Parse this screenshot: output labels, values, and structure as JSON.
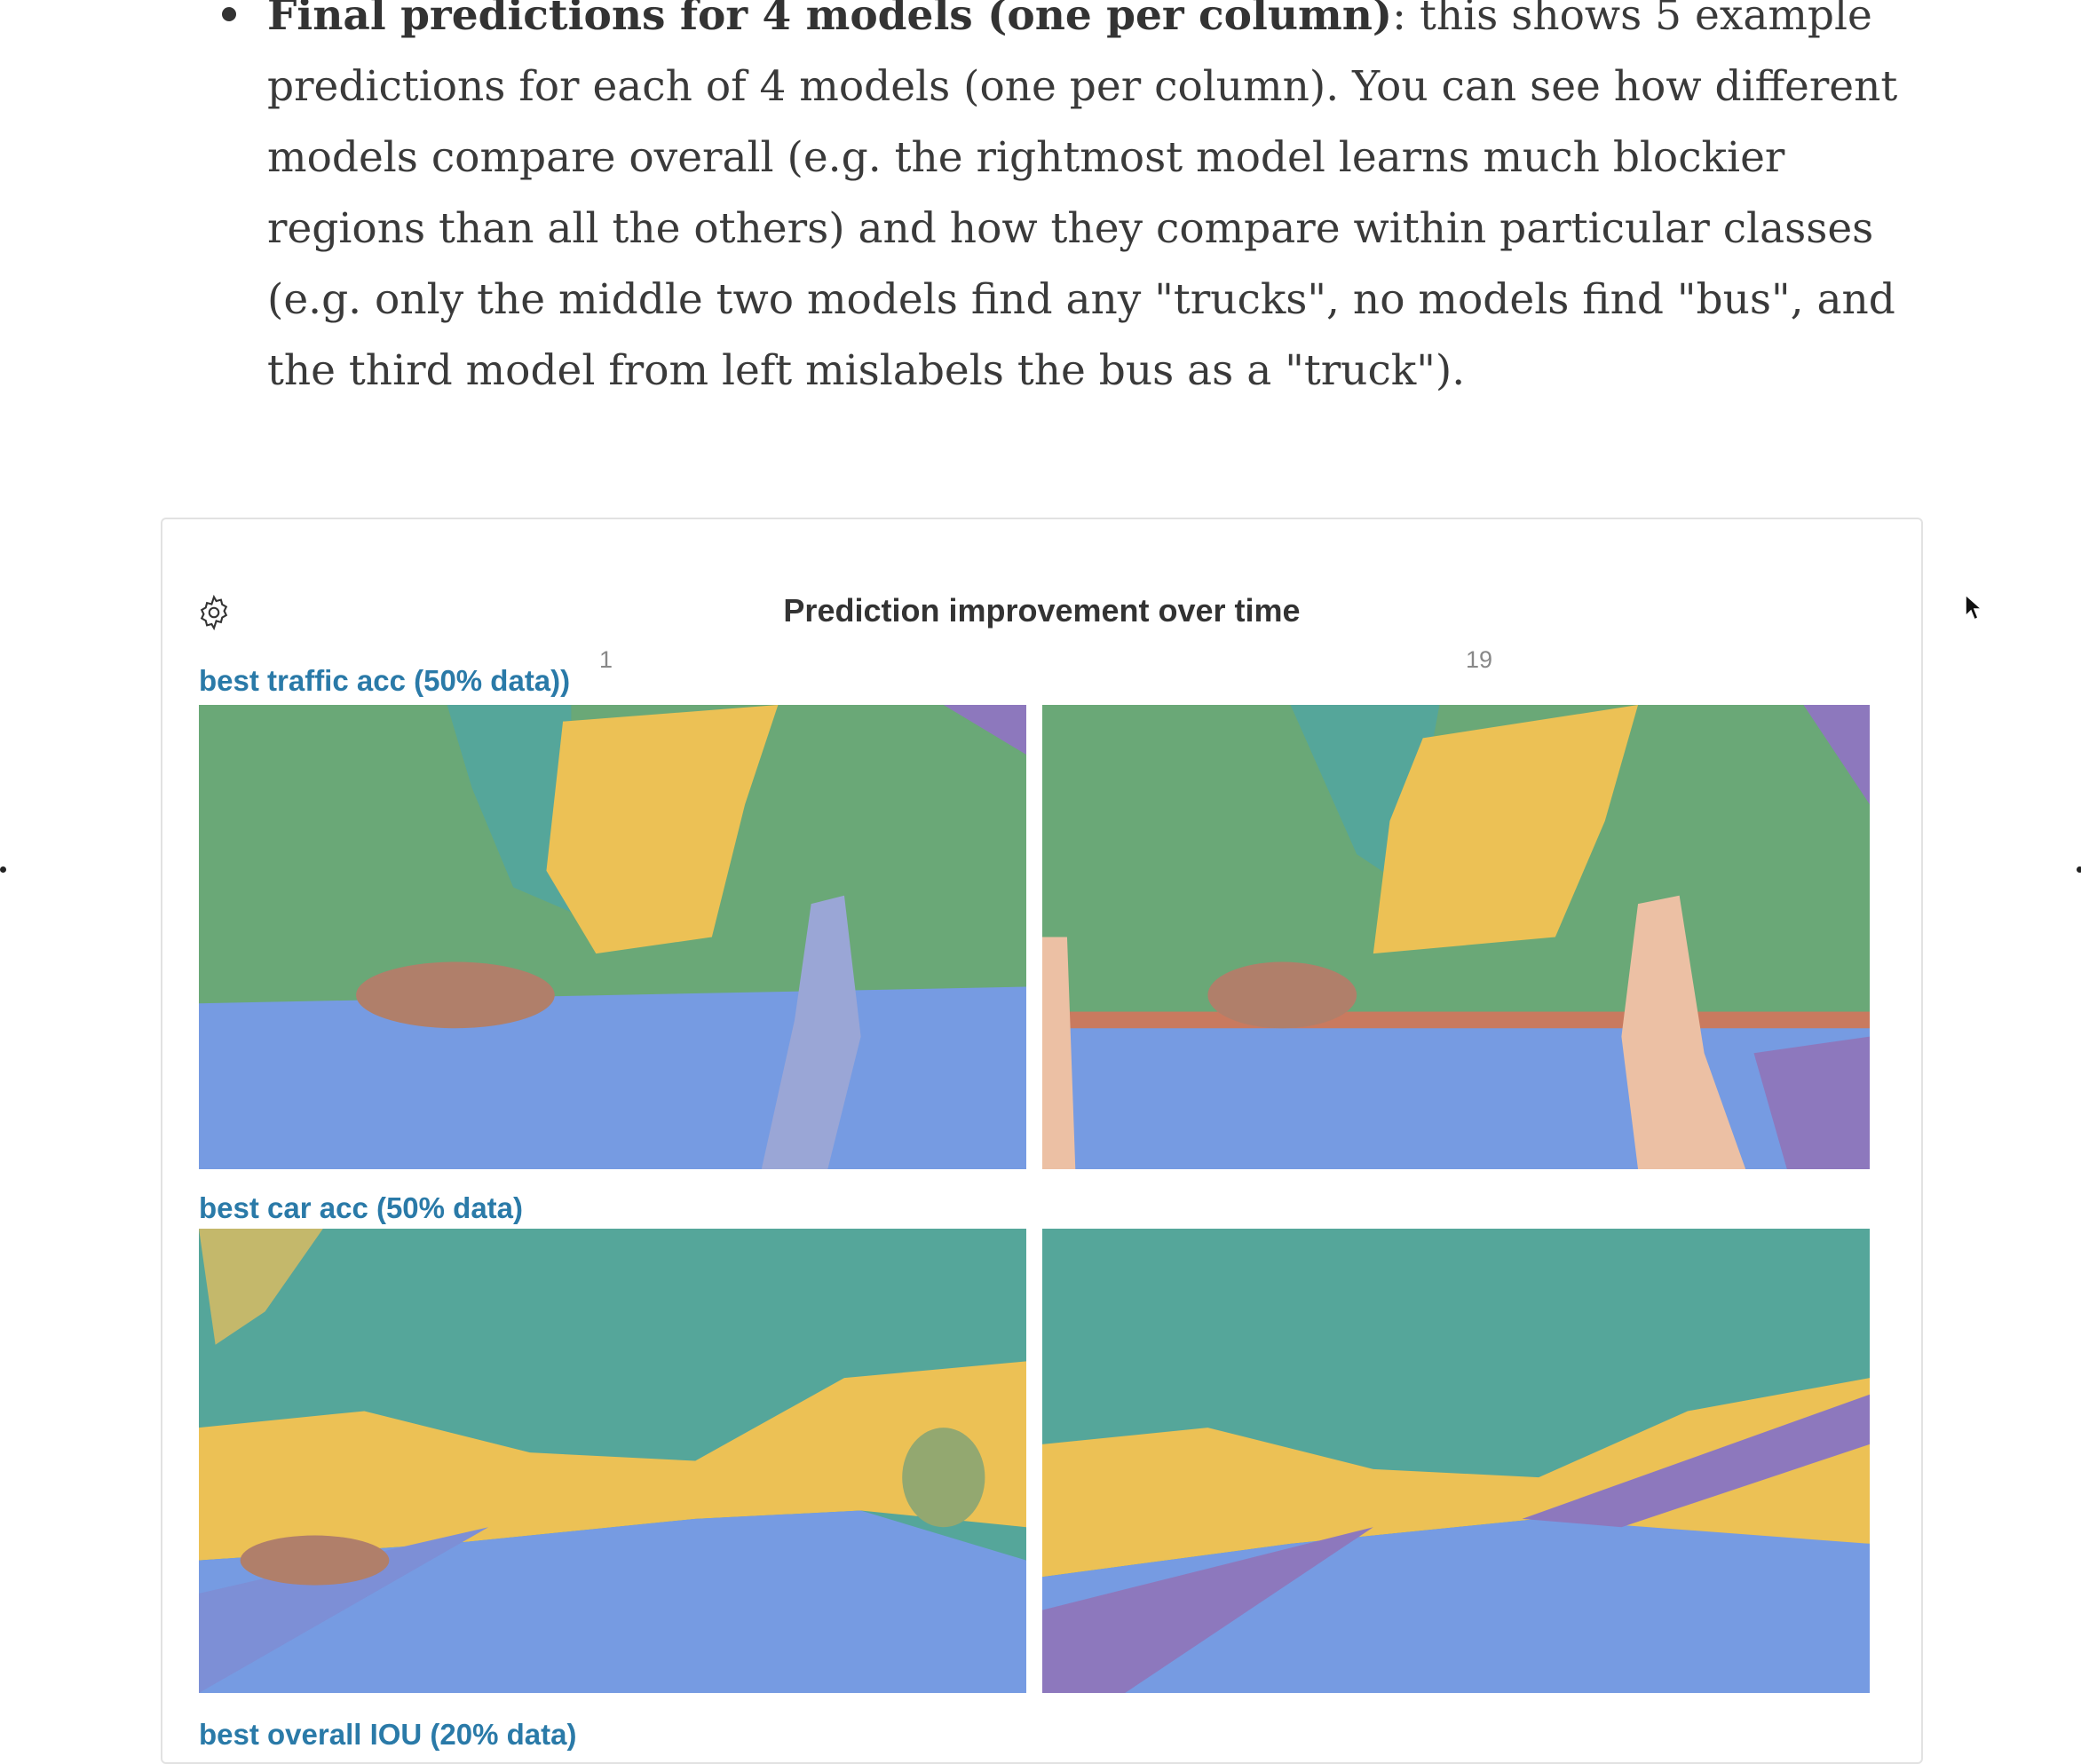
{
  "article": {
    "bullet_bold": "Final predictions for 4 models (one per column)",
    "bullet_text": ": this shows 5 example predictions for each of 4 models (one per column). You can see how different models compare overall (e.g. the rightmost model learns much blockier regions than all the others) and how they compare within particular classes (e.g. only the middle two models find any \"trucks\", no models find \"bus\", and the third model from left mislabels the bus as a \"truck\")."
  },
  "panel": {
    "title": "Prediction improvement over time",
    "settings_icon": "gear-icon",
    "steps": [
      "1",
      "19"
    ],
    "rows": [
      {
        "label": "best traffic acc (50% data))"
      },
      {
        "label": "best car acc (50% data)"
      },
      {
        "label": "best overall IOU (20% data)"
      }
    ]
  },
  "colors": {
    "label_link": "#2a7aa8",
    "vegetation": "#6aa877",
    "sky": "#55a69a",
    "tree_yellow": "#ecc155",
    "road": "#769be2",
    "car": "#b07f6a",
    "building": "#8d78bd",
    "person": "#ecc0a4"
  }
}
